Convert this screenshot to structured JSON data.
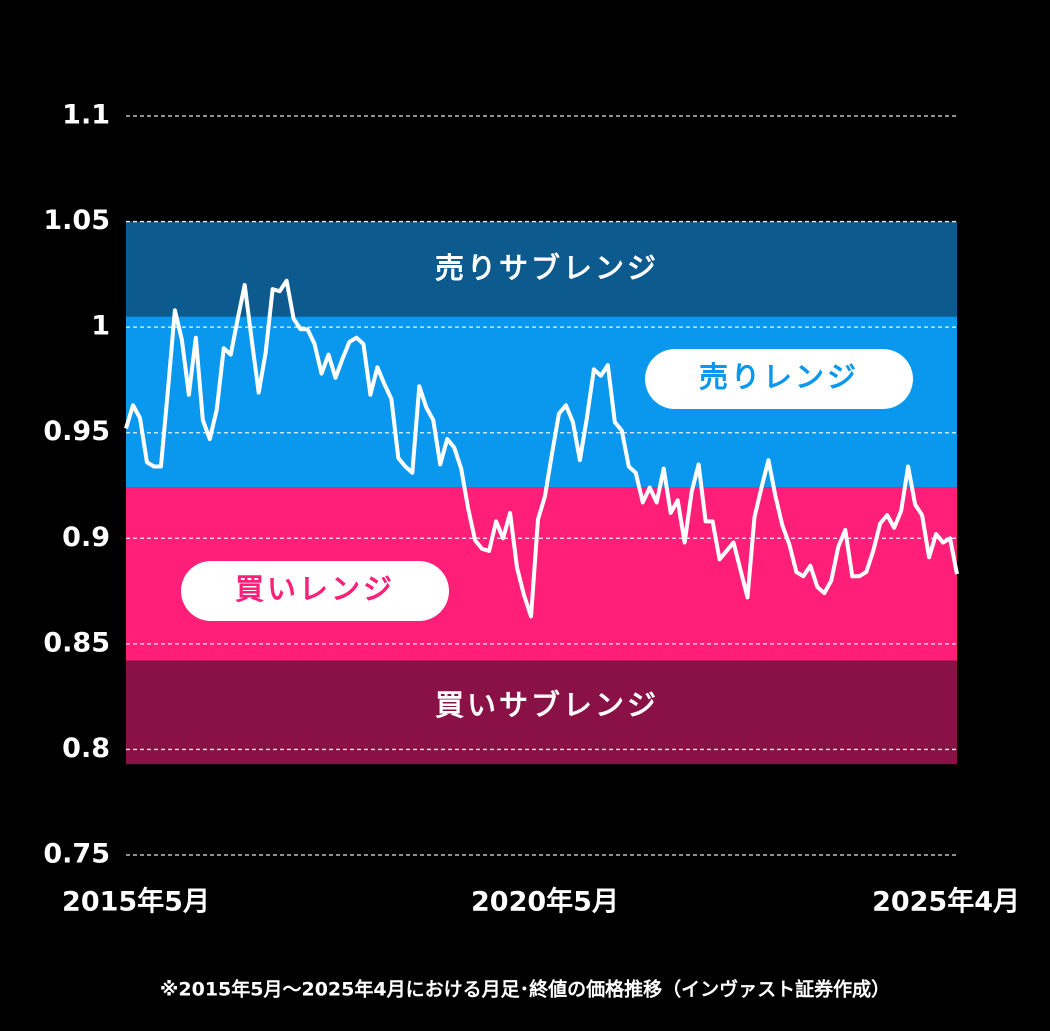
{
  "chart_data": {
    "type": "line",
    "categories": [
      "2015年5月",
      null,
      null,
      null,
      null,
      null,
      null,
      null,
      null,
      null,
      null,
      null,
      null,
      null,
      null,
      null,
      null,
      null,
      null,
      null,
      null,
      null,
      null,
      null,
      null,
      null,
      null,
      null,
      null,
      null,
      null,
      null,
      null,
      null,
      null,
      null,
      null,
      null,
      null,
      null,
      null,
      null,
      null,
      null,
      null,
      null,
      null,
      null,
      null,
      null,
      null,
      null,
      null,
      null,
      null,
      null,
      null,
      null,
      null,
      null,
      "2020年5月",
      null,
      null,
      null,
      null,
      null,
      null,
      null,
      null,
      null,
      null,
      null,
      null,
      null,
      null,
      null,
      null,
      null,
      null,
      null,
      null,
      null,
      null,
      null,
      null,
      null,
      null,
      null,
      null,
      null,
      null,
      null,
      null,
      null,
      null,
      null,
      null,
      null,
      null,
      null,
      null,
      null,
      null,
      null,
      null,
      null,
      null,
      null,
      null,
      null,
      null,
      null,
      null,
      null,
      null,
      null,
      null,
      null,
      null,
      "2025年4月"
    ],
    "values": [
      0.952,
      0.963,
      0.957,
      0.936,
      0.934,
      0.934,
      0.97,
      1.008,
      0.994,
      0.968,
      0.995,
      0.956,
      0.947,
      0.961,
      0.99,
      0.987,
      1.004,
      1.02,
      0.994,
      0.969,
      0.988,
      1.018,
      1.017,
      1.022,
      1.004,
      0.999,
      0.999,
      0.992,
      0.978,
      0.987,
      0.976,
      0.985,
      0.993,
      0.995,
      0.992,
      0.968,
      0.981,
      0.973,
      0.966,
      0.938,
      0.934,
      0.931,
      0.972,
      0.962,
      0.956,
      0.935,
      0.947,
      0.943,
      0.933,
      0.914,
      0.899,
      0.895,
      0.894,
      0.908,
      0.9,
      0.912,
      0.886,
      0.873,
      0.863,
      0.909,
      0.92,
      0.94,
      0.959,
      0.963,
      0.955,
      0.937,
      0.957,
      0.98,
      0.977,
      0.982,
      0.955,
      0.951,
      0.934,
      0.931,
      0.917,
      0.924,
      0.917,
      0.933,
      0.912,
      0.918,
      0.898,
      0.922,
      0.935,
      0.908,
      0.908,
      0.89,
      0.894,
      0.898,
      0.885,
      0.872,
      0.91,
      0.924,
      0.937,
      0.92,
      0.906,
      0.897,
      0.884,
      0.882,
      0.887,
      0.877,
      0.874,
      0.88,
      0.896,
      0.904,
      0.882,
      0.882,
      0.884,
      0.894,
      0.907,
      0.911,
      0.905,
      0.913,
      0.934,
      0.916,
      0.911,
      0.891,
      0.902,
      0.898,
      0.9,
      0.883
    ],
    "color": "#ffffff",
    "ylim": [
      0.75,
      1.1
    ],
    "yticks": [
      1.1,
      1.05,
      1,
      0.95,
      0.9,
      0.85,
      0.8,
      0.75
    ],
    "grid": true,
    "bands": [
      {
        "name": "売りサブレンジ",
        "range": [
          1.005,
          1.05
        ],
        "color": "#0d5a8f"
      },
      {
        "name": "売りレンジ",
        "range": [
          0.924,
          1.005
        ],
        "color": "#0a98ef"
      },
      {
        "name": "買いレンジ",
        "range": [
          0.842,
          0.924
        ],
        "color": "#ff1f78"
      },
      {
        "name": "買いサブレンジ",
        "range": [
          0.793,
          0.842
        ],
        "color": "#8a1145"
      }
    ],
    "footnote": "※2015年5月～2025年4月における月足･終値の価格推移（インヴァスト証券作成）"
  }
}
